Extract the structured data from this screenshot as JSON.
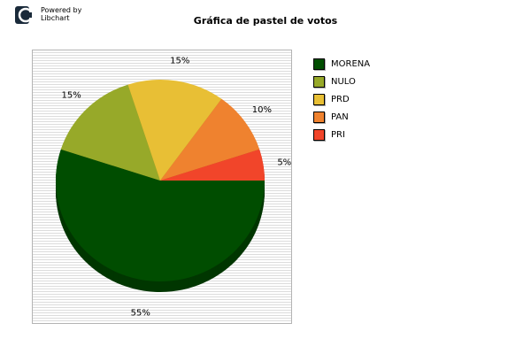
{
  "branding": {
    "line1": "Powered by",
    "line2": "Libchart"
  },
  "chart_data": {
    "type": "pie",
    "title": "Gráfica de pastel de votos",
    "categories": [
      "MORENA",
      "NULO",
      "PRD",
      "PAN",
      "PRI"
    ],
    "values": [
      55,
      15,
      15,
      10,
      5
    ],
    "labels": [
      "55%",
      "15%",
      "15%",
      "10%",
      "5%"
    ],
    "colors": [
      "#004d00",
      "#97a929",
      "#e8bf35",
      "#ef822f",
      "#f1452a"
    ],
    "legend_position": "right"
  }
}
